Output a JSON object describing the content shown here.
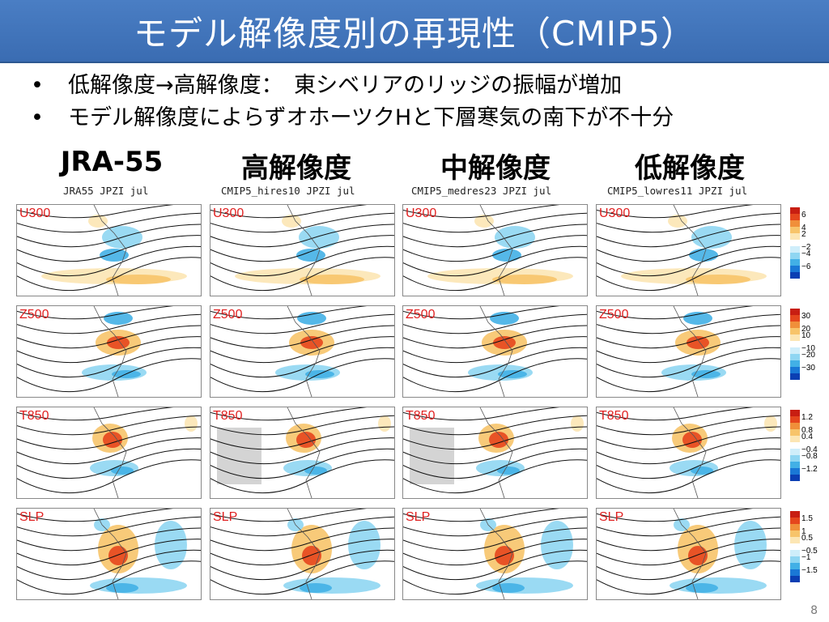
{
  "slide": {
    "title": "モデル解像度別の再現性（CMIP5）",
    "bullets": [
      "低解像度→高解像度：　東シベリアのリッジの振幅が増加",
      "モデル解像度によらずオホーツクHと下層寒気の南下が不十分"
    ],
    "columns": [
      {
        "heading": "JRA-55",
        "subtitle": "JRA55  JPZI  jul"
      },
      {
        "heading": "高解像度",
        "subtitle": "CMIP5_hires10  JPZI  jul"
      },
      {
        "heading": "中解像度",
        "subtitle": "CMIP5_medres23  JPZI  jul"
      },
      {
        "heading": "低解像度",
        "subtitle": "CMIP5_lowres11  JPZI  jul"
      }
    ],
    "rows": [
      {
        "label": "U300",
        "scale_ticks": [
          "6",
          "4",
          "2",
          "−2",
          "−4",
          "−6"
        ]
      },
      {
        "label": "Z500",
        "scale_ticks": [
          "30",
          "20",
          "10",
          "−10",
          "−20",
          "−30"
        ]
      },
      {
        "label": "T850",
        "scale_ticks": [
          "1.2",
          "0.8",
          "0.4",
          "−0.4",
          "−0.8",
          "−1.2"
        ]
      },
      {
        "label": "SLP",
        "scale_ticks": [
          "1.5",
          "1",
          "0.5",
          "−0.5",
          "−1",
          "−1.5"
        ]
      }
    ],
    "page_number": "8",
    "colors": {
      "title_bar": "#3a6cb2",
      "label_red": "#e02020",
      "positive_scale": [
        "#fce6b4",
        "#f7c46a",
        "#f08f3a",
        "#e5461d",
        "#c81e12"
      ],
      "negative_scale": [
        "#cfeefa",
        "#8fd6f2",
        "#42b0e6",
        "#1a78d6",
        "#0b3fb3"
      ]
    },
    "icons": [
      "bullet-dot-icon"
    ]
  }
}
